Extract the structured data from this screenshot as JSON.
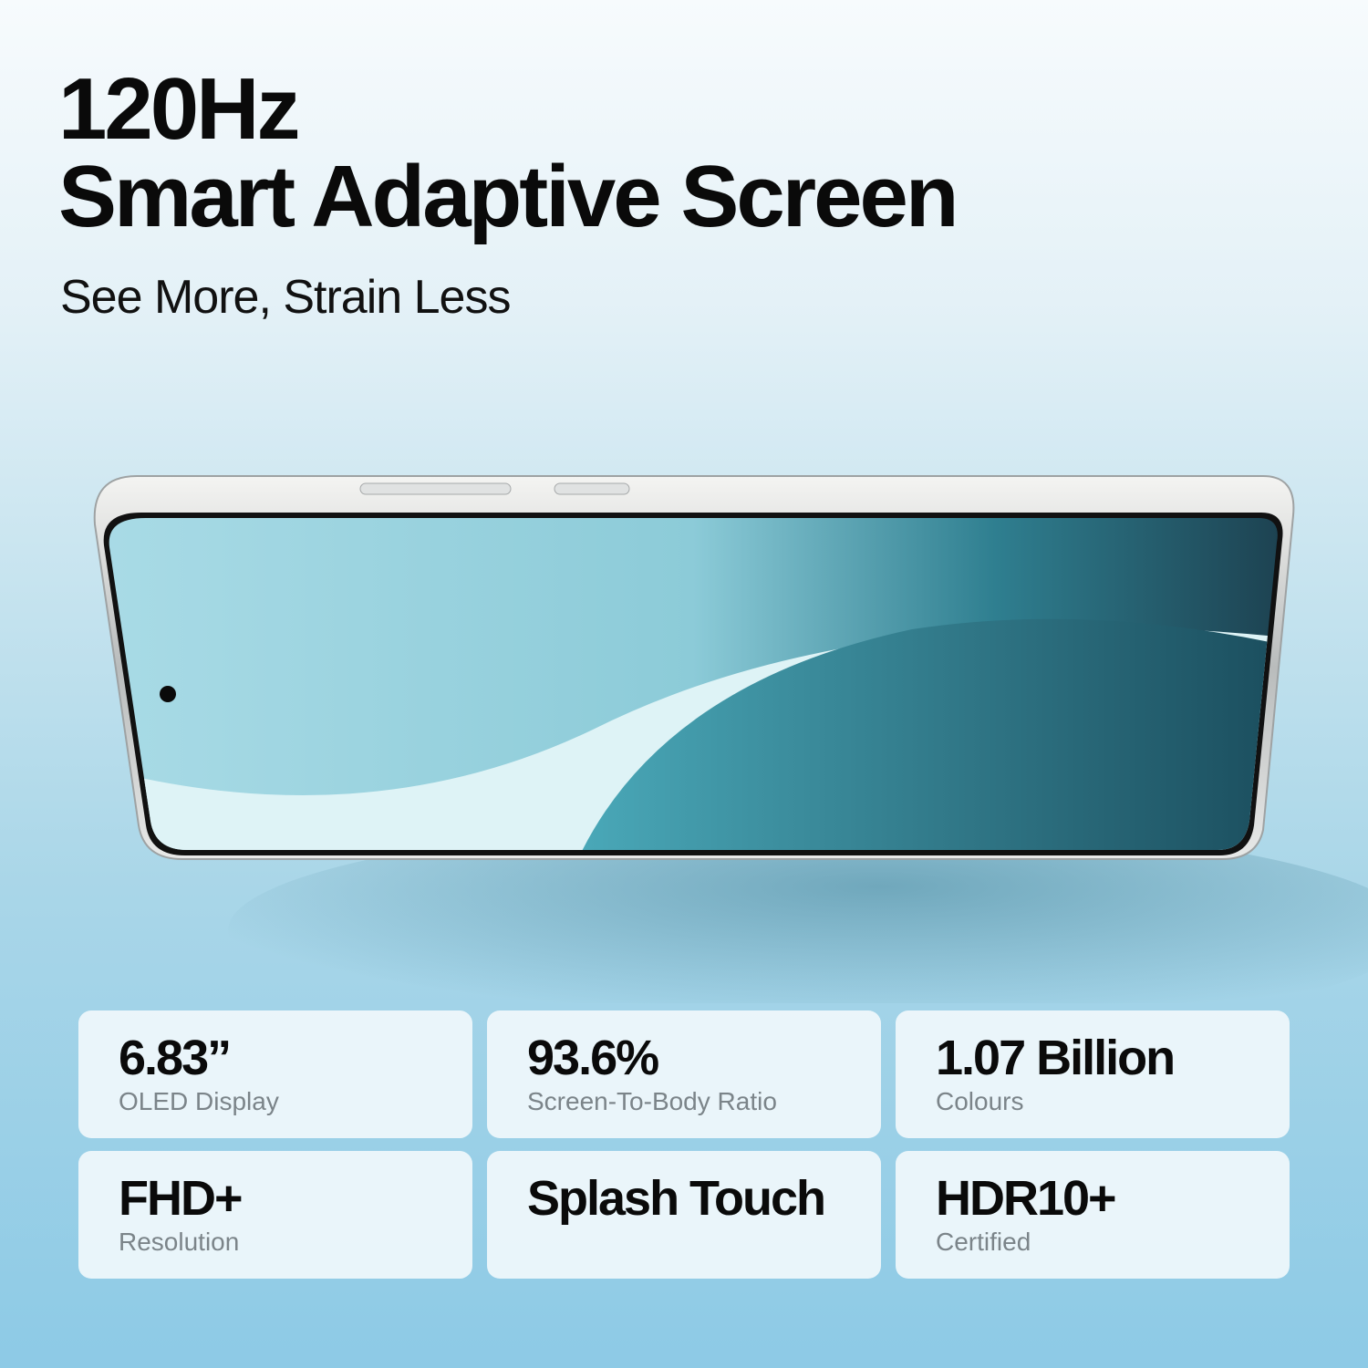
{
  "headline": {
    "line1": "120Hz",
    "line2": "Smart Adaptive Screen",
    "subtitle": "See More, Strain Less"
  },
  "specs": [
    {
      "value": "6.83”",
      "label": "OLED Display"
    },
    {
      "value": "93.6%",
      "label": "Screen-To-Body Ratio"
    },
    {
      "value": "1.07 Billion",
      "label": "Colours"
    },
    {
      "value": "FHD+",
      "label": "Resolution"
    },
    {
      "value": "Splash Touch",
      "label": ""
    },
    {
      "value": "HDR10+",
      "label": "Certified"
    }
  ],
  "colors": {
    "text": "#0a0a0a",
    "label": "#7b8489",
    "screen_teal": "#3a9fb0"
  }
}
